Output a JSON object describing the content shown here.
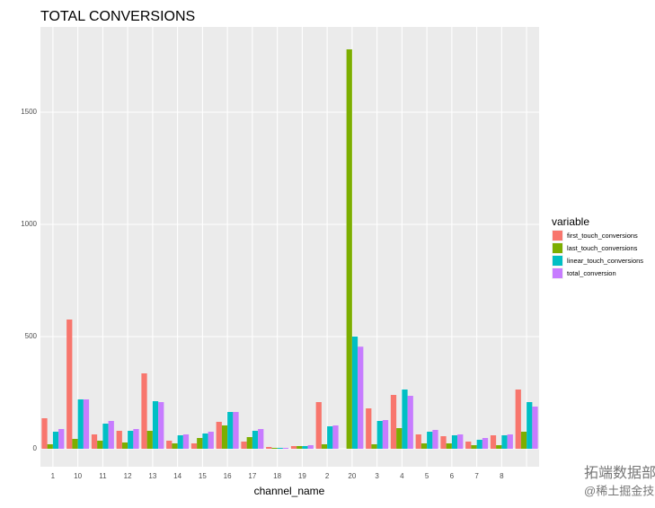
{
  "chart_data": {
    "type": "bar",
    "title": "TOTAL CONVERSIONS",
    "x_label": "channel_name",
    "categories": [
      "1",
      "10",
      "11",
      "12",
      "13",
      "14",
      "15",
      "16",
      "17",
      "18",
      "19",
      "2",
      "20",
      "3",
      "4",
      "5",
      "6",
      "7",
      "8",
      null
    ],
    "series": [
      {
        "name": "first_touch_conversions",
        "color": "#F8766D",
        "values": [
          136,
          576,
          64,
          80,
          336,
          36,
          24,
          120,
          32,
          8,
          12,
          208,
          0,
          180,
          240,
          64,
          56,
          32,
          60,
          264
        ]
      },
      {
        "name": "last_touch_conversions",
        "color": "#7CAE00",
        "values": [
          20,
          44,
          36,
          28,
          80,
          24,
          48,
          104,
          52,
          4,
          12,
          20,
          1780,
          20,
          92,
          24,
          24,
          16,
          16,
          76
        ]
      },
      {
        "name": "linear_touch_conversions",
        "color": "#00BFC4",
        "values": [
          76,
          220,
          112,
          80,
          212,
          60,
          68,
          164,
          80,
          4,
          12,
          100,
          500,
          124,
          264,
          76,
          60,
          40,
          60,
          208
        ]
      },
      {
        "name": "total_conversion",
        "color": "#C77CFF",
        "values": [
          88,
          220,
          124,
          88,
          208,
          64,
          76,
          164,
          88,
          4,
          16,
          104,
          455,
          128,
          236,
          84,
          64,
          48,
          64,
          188
        ]
      }
    ],
    "legend_title": "variable",
    "legend_position": "right",
    "ylim": [
      -80,
      1880
    ],
    "yticks": [
      0,
      500,
      1000,
      1500
    ],
    "grid": true,
    "watermark": [
      "拓端数据部落",
      "@稀土掘金技术社区"
    ]
  }
}
